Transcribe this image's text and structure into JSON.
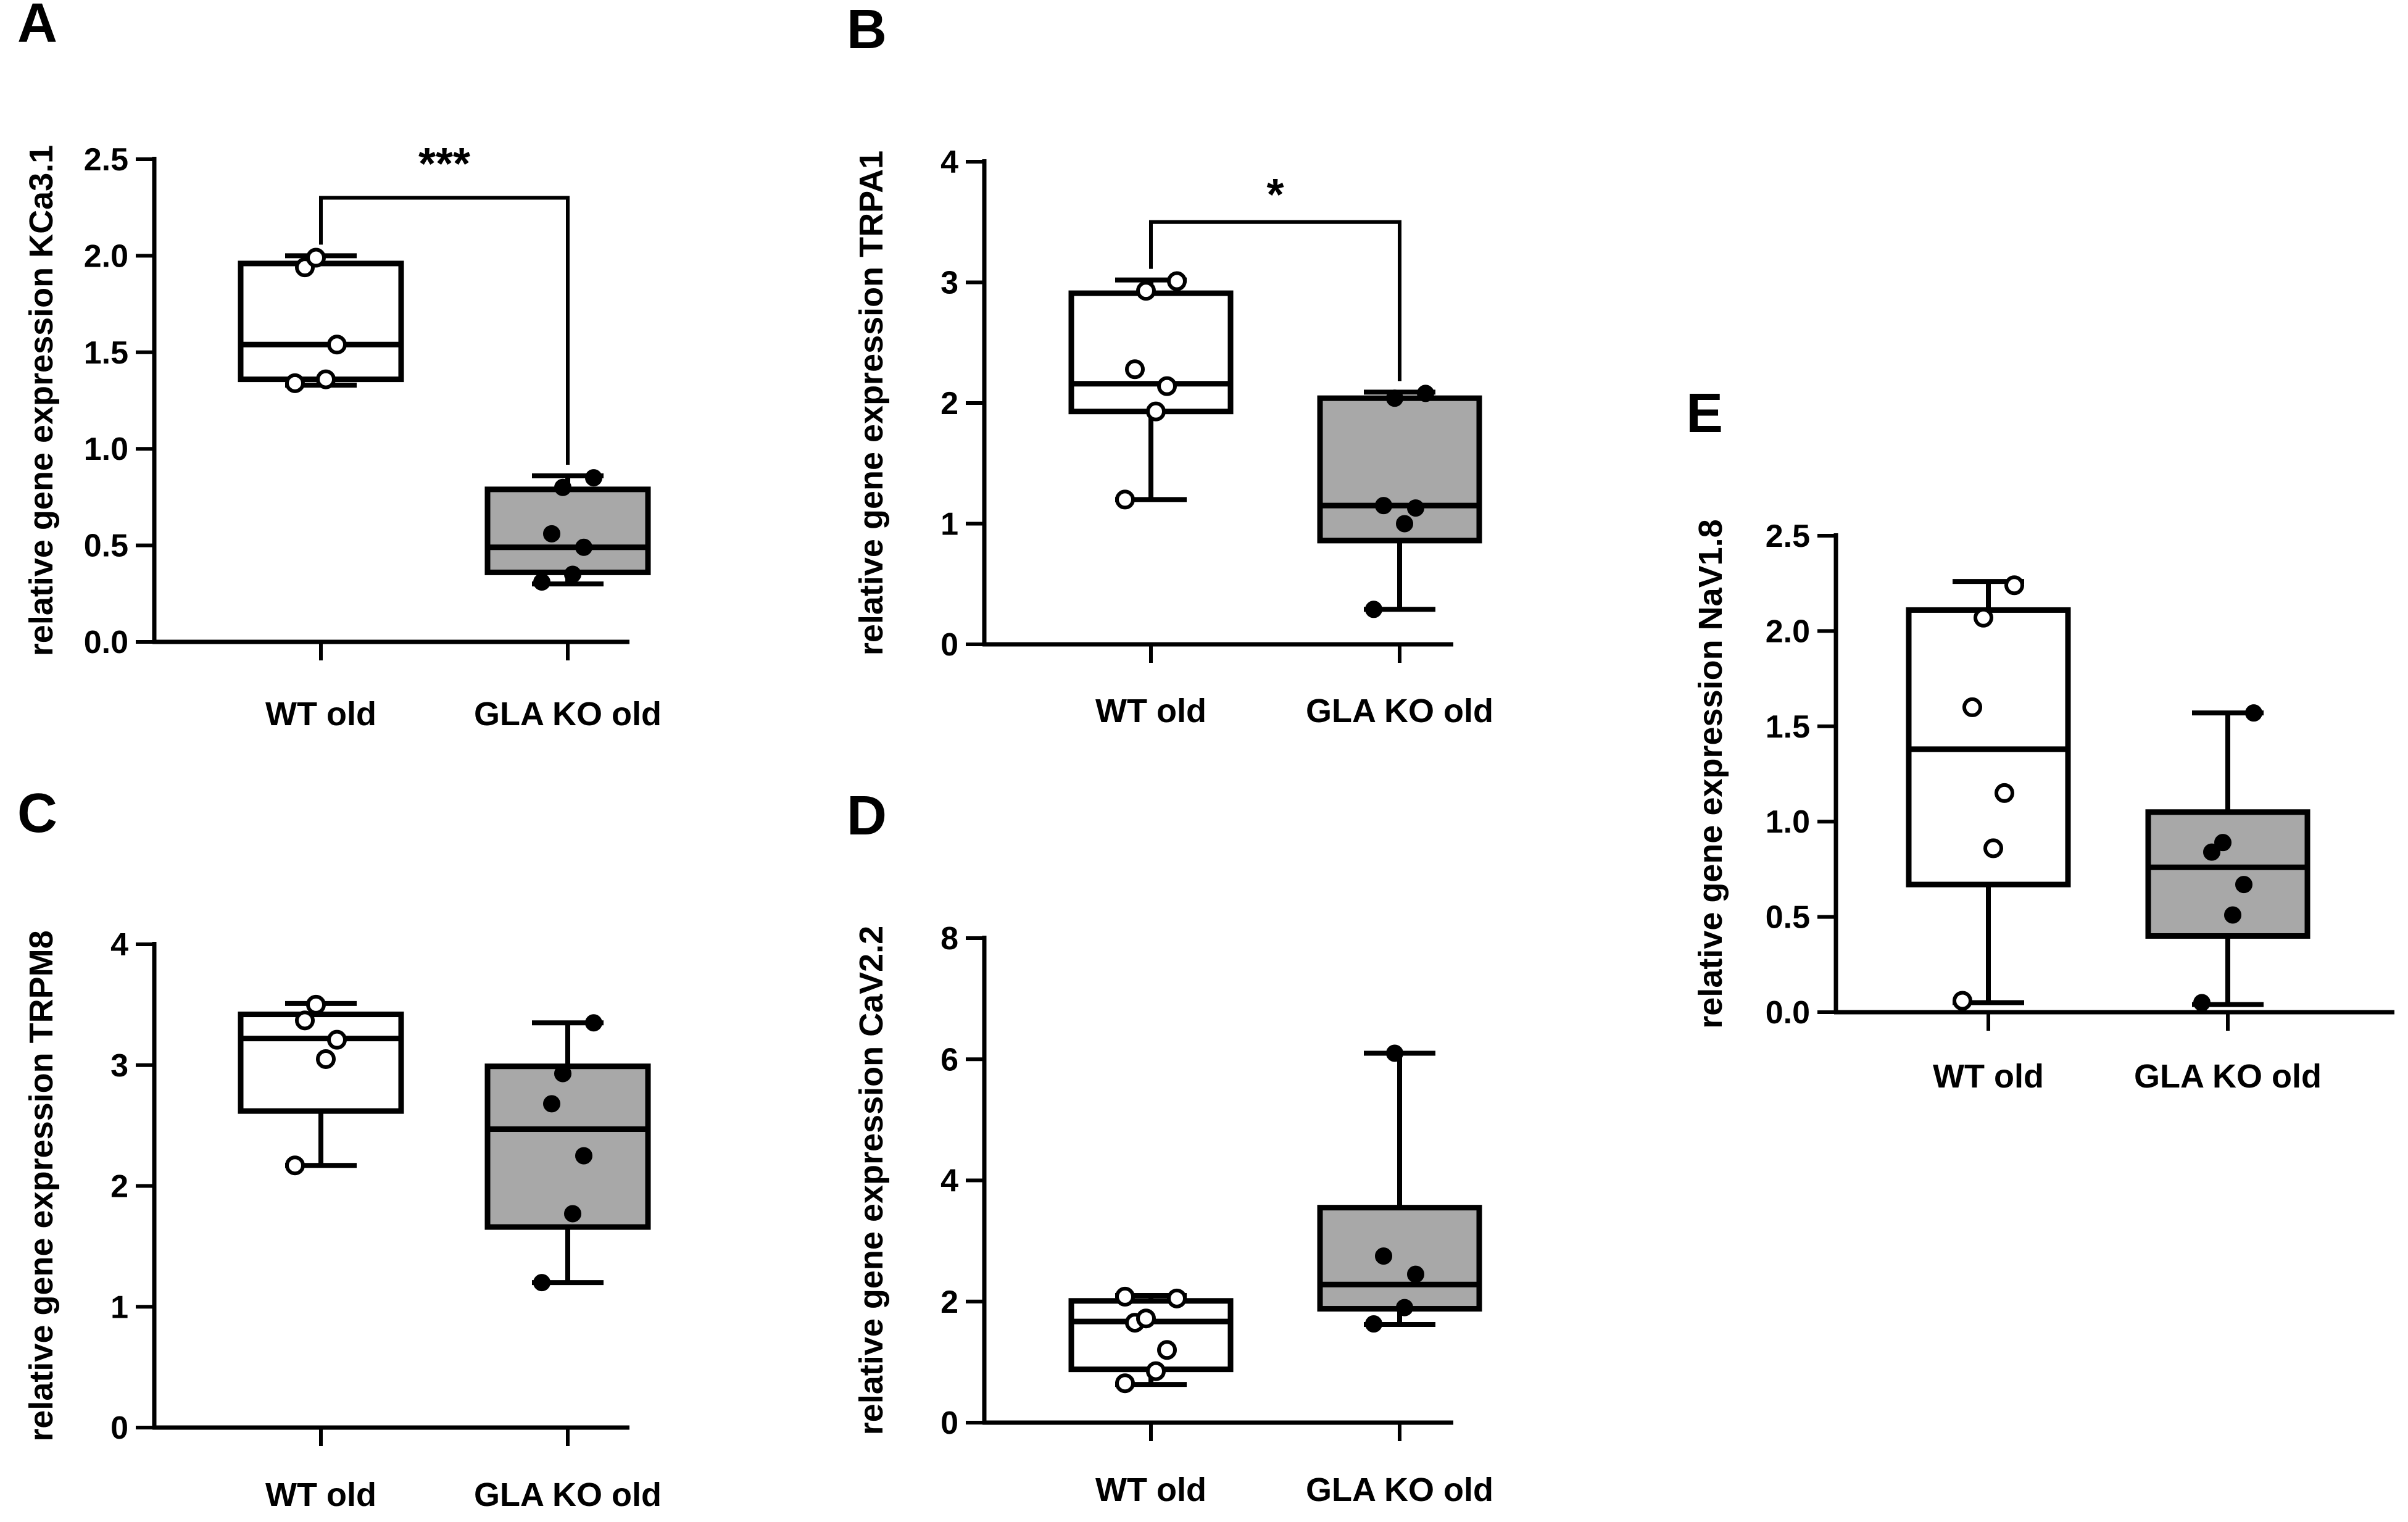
{
  "colors": {
    "wt_fill": "#ffffff",
    "ko_fill": "#a8a8a8",
    "ink": "#000000"
  },
  "chart_data": [
    {
      "panel": "A",
      "type": "box",
      "ylabel": "relative gene expression KCa3.1",
      "ylim": [
        0,
        2.5
      ],
      "yticks": [
        "0.0",
        "0.5",
        "1.0",
        "1.5",
        "2.0",
        "2.5"
      ],
      "categories": [
        "WT old",
        "GLA KO old"
      ],
      "groups": [
        {
          "name": "WT old",
          "min": 1.33,
          "q1": 1.36,
          "median": 1.54,
          "q3": 1.96,
          "max": 2.0,
          "points": [
            1.34,
            1.36,
            1.54,
            1.94,
            1.99
          ],
          "marker": "open"
        },
        {
          "name": "GLA KO old",
          "min": 0.3,
          "q1": 0.36,
          "median": 0.49,
          "q3": 0.79,
          "max": 0.86,
          "points": [
            0.31,
            0.35,
            0.49,
            0.56,
            0.8,
            0.85
          ],
          "marker": "filled"
        }
      ],
      "significance": "***"
    },
    {
      "panel": "B",
      "type": "box",
      "ylabel": "relative gene expression TRPA1",
      "ylim": [
        0,
        4
      ],
      "yticks": [
        "0",
        "1",
        "2",
        "3",
        "4"
      ],
      "categories": [
        "WT old",
        "GLA KO old"
      ],
      "groups": [
        {
          "name": "WT old",
          "min": 1.2,
          "q1": 1.93,
          "median": 2.16,
          "q3": 2.91,
          "max": 3.02,
          "points": [
            1.2,
            1.93,
            2.14,
            2.28,
            2.93,
            3.01
          ],
          "marker": "open"
        },
        {
          "name": "GLA KO old",
          "min": 0.29,
          "q1": 0.86,
          "median": 1.15,
          "q3": 2.04,
          "max": 2.09,
          "points": [
            0.29,
            1.0,
            1.13,
            1.15,
            2.04,
            2.08
          ],
          "marker": "filled"
        }
      ],
      "significance": "*"
    },
    {
      "panel": "C",
      "type": "box",
      "ylabel": "relative gene expression TRPM8",
      "ylim": [
        0,
        4
      ],
      "yticks": [
        "0",
        "1",
        "2",
        "3",
        "4"
      ],
      "categories": [
        "WT old",
        "GLA KO old"
      ],
      "groups": [
        {
          "name": "WT old",
          "min": 2.17,
          "q1": 2.62,
          "median": 3.22,
          "q3": 3.42,
          "max": 3.51,
          "points": [
            2.17,
            3.05,
            3.21,
            3.37,
            3.5
          ],
          "marker": "open"
        },
        {
          "name": "GLA KO old",
          "min": 1.2,
          "q1": 1.66,
          "median": 2.47,
          "q3": 2.99,
          "max": 3.35,
          "points": [
            1.2,
            1.77,
            2.25,
            2.68,
            2.93,
            3.35
          ],
          "marker": "filled"
        }
      ],
      "significance": ""
    },
    {
      "panel": "D",
      "type": "box",
      "ylabel": "relative gene expression CaV2.2",
      "ylim": [
        0,
        8
      ],
      "yticks": [
        "0",
        "2",
        "4",
        "6",
        "8"
      ],
      "categories": [
        "WT old",
        "GLA KO old"
      ],
      "groups": [
        {
          "name": "WT old",
          "min": 0.63,
          "q1": 0.88,
          "median": 1.67,
          "q3": 2.01,
          "max": 2.1,
          "points": [
            0.65,
            0.85,
            1.2,
            1.65,
            1.72,
            2.05,
            2.08
          ],
          "marker": "open"
        },
        {
          "name": "GLA KO old",
          "min": 1.62,
          "q1": 1.88,
          "median": 2.28,
          "q3": 3.55,
          "max": 6.1,
          "points": [
            1.63,
            1.9,
            2.45,
            2.75,
            6.1
          ],
          "marker": "filled"
        }
      ],
      "significance": ""
    },
    {
      "panel": "E",
      "type": "box",
      "ylabel": "relative gene expression NaV1.8",
      "ylim": [
        0,
        2.5
      ],
      "yticks": [
        "0.0",
        "0.5",
        "1.0",
        "1.5",
        "2.0",
        "2.5"
      ],
      "categories": [
        "WT old",
        "GLA KO old"
      ],
      "groups": [
        {
          "name": "WT old",
          "min": 0.05,
          "q1": 0.67,
          "median": 1.38,
          "q3": 2.11,
          "max": 2.26,
          "points": [
            0.06,
            0.86,
            1.15,
            1.6,
            2.07,
            2.24
          ],
          "marker": "open"
        },
        {
          "name": "GLA KO old",
          "min": 0.04,
          "q1": 0.4,
          "median": 0.76,
          "q3": 1.05,
          "max": 1.57,
          "points": [
            0.05,
            0.51,
            0.67,
            0.84,
            0.89,
            1.57
          ],
          "marker": "filled"
        }
      ],
      "significance": ""
    }
  ]
}
